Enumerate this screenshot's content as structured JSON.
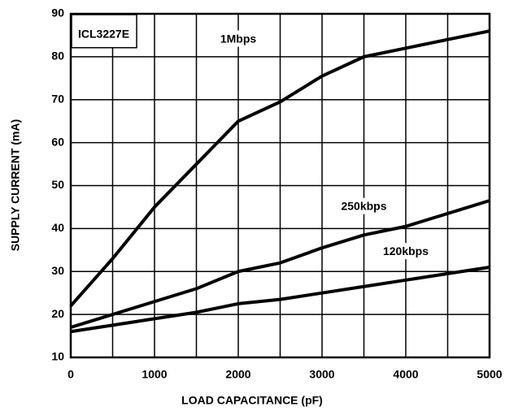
{
  "chart_data": {
    "type": "line",
    "annotation": "ICL3227E",
    "xlabel": "LOAD CAPACITANCE (pF)",
    "ylabel": "SUPPLY CURRENT (mA)",
    "x": [
      0,
      500,
      1000,
      1500,
      2000,
      2500,
      3000,
      3500,
      4000,
      4500,
      5000
    ],
    "series": [
      {
        "name": "1Mbps",
        "color": "#000000",
        "values": [
          22,
          33,
          45,
          55,
          65,
          69.5,
          75.5,
          80,
          82,
          84,
          86
        ]
      },
      {
        "name": "250kbps",
        "color": "#000000",
        "values": [
          17,
          20,
          23,
          26,
          30,
          32,
          35.5,
          38.5,
          40.5,
          43.5,
          46.5
        ]
      },
      {
        "name": "120kbps",
        "color": "#000000",
        "values": [
          16,
          17.5,
          19,
          20.5,
          22.5,
          23.5,
          25,
          26.5,
          28,
          29.5,
          31
        ]
      }
    ],
    "xlim": [
      0,
      5000
    ],
    "xticks": [
      0,
      1000,
      2000,
      3000,
      4000,
      5000
    ],
    "ylim": [
      10,
      90
    ],
    "yticks": [
      10,
      20,
      30,
      40,
      50,
      60,
      70,
      80,
      90
    ],
    "grid": true
  }
}
